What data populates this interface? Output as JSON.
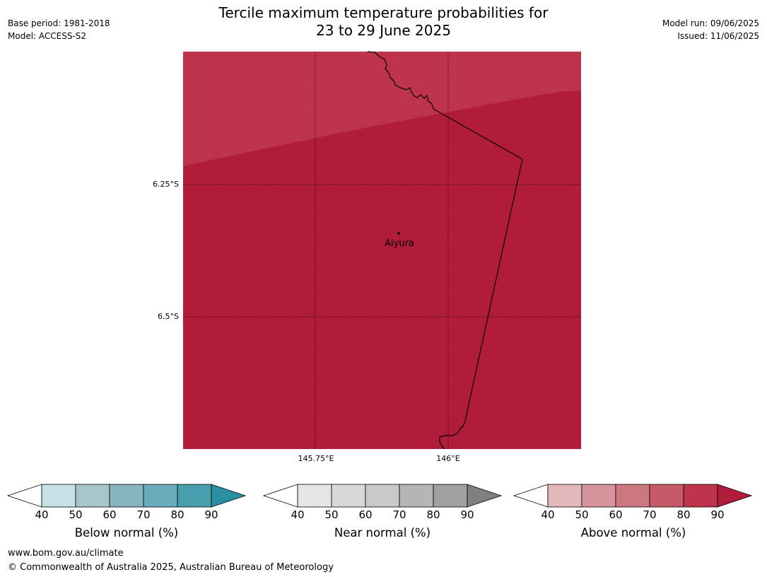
{
  "header": {
    "title_line1": "Tercile maximum temperature probabilities for",
    "title_line2": "23 to 29 June 2025",
    "base_period": "Base period: 1981-2018",
    "model": "Model: ACCESS-S2",
    "model_run": "Model run: 09/06/2025",
    "issued": "Issued: 11/06/2025"
  },
  "map": {
    "lat_ticks": [
      "6.25°S",
      "6.5°S"
    ],
    "lon_ticks": [
      "145.75°E",
      "146°E"
    ],
    "place": "Aiyura",
    "colors": {
      "above_80_90": "#bd334b",
      "above_90_plus": "#b11c3a",
      "border": "#000000"
    }
  },
  "colorbars": [
    {
      "label": "Below normal (%)",
      "ticks": [
        "40",
        "50",
        "60",
        "70",
        "80",
        "90"
      ],
      "colors": [
        "#ffffff",
        "#c9e1e6",
        "#a7c5ca",
        "#88b4c0",
        "#6aacb9",
        "#479fae",
        "#2a8fa0"
      ]
    },
    {
      "label": "Near normal (%)",
      "ticks": [
        "40",
        "50",
        "60",
        "70",
        "80",
        "90"
      ],
      "colors": [
        "#ffffff",
        "#e5e5e5",
        "#d8d8d8",
        "#c9c9c9",
        "#b5b5b5",
        "#a0a0a0",
        "#808080"
      ]
    },
    {
      "label": "Above normal (%)",
      "ticks": [
        "40",
        "50",
        "60",
        "70",
        "80",
        "90"
      ],
      "colors": [
        "#ffffff",
        "#e3b7bb",
        "#d6959c",
        "#cb7880",
        "#c55a68",
        "#bd334b",
        "#b11c3a"
      ]
    }
  ],
  "footer": {
    "url": "www.bom.gov.au/climate",
    "copyright": "© Commonwealth of Australia 2025, Australian Bureau of Meteorology"
  }
}
